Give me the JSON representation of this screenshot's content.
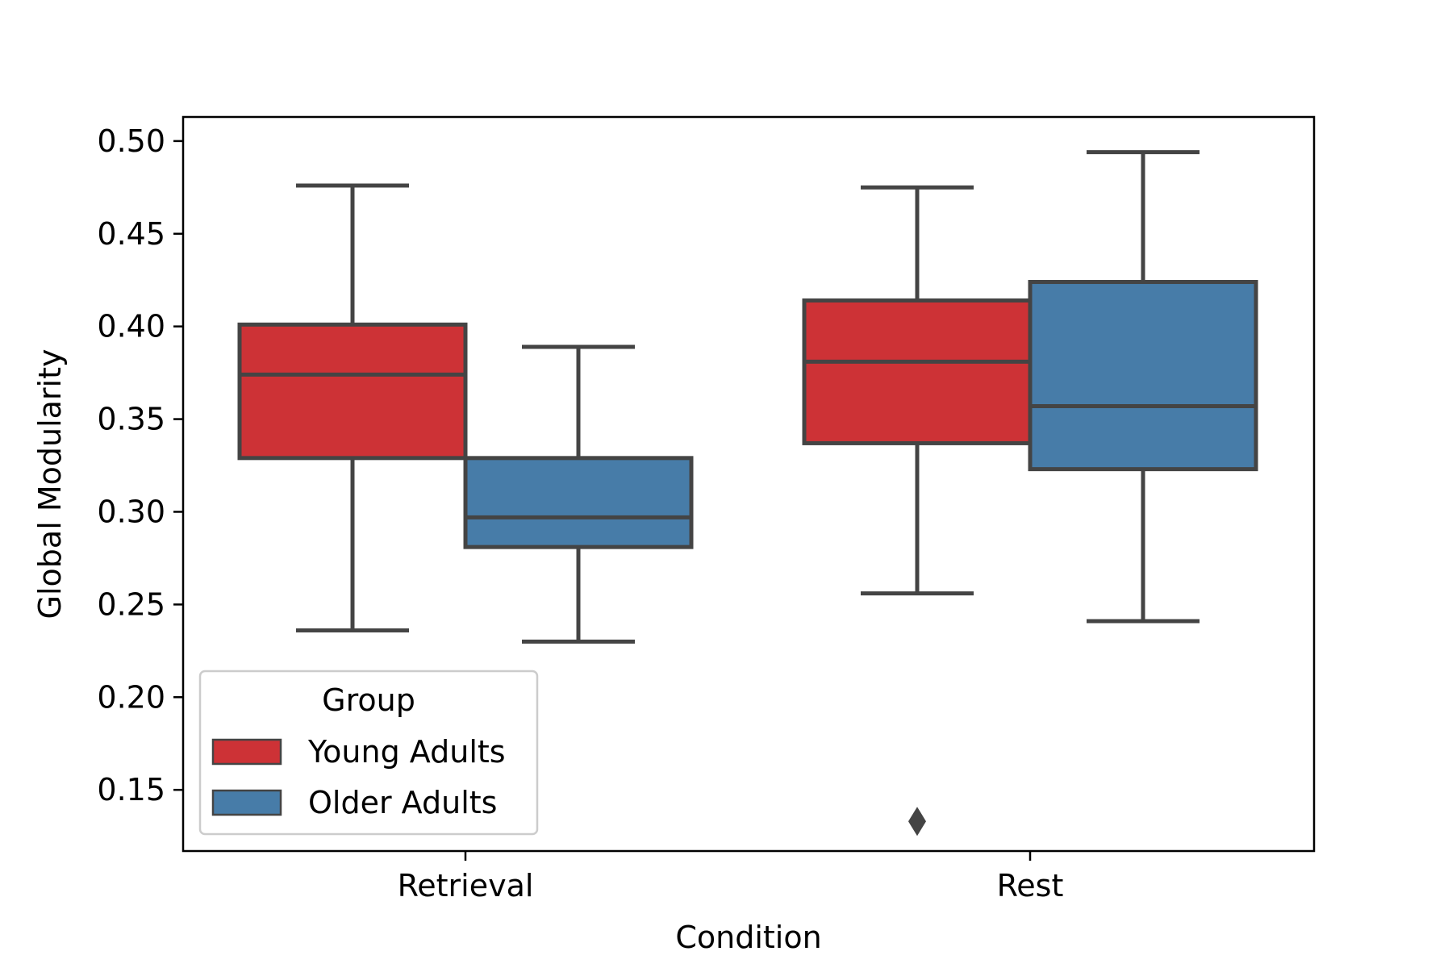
{
  "chart_data": {
    "type": "box",
    "xlabel": "Condition",
    "ylabel": "Global Modularity",
    "ylim": [
      0.117,
      0.513
    ],
    "yticks": [
      "0.15",
      "0.20",
      "0.25",
      "0.30",
      "0.35",
      "0.40",
      "0.45",
      "0.50"
    ],
    "categories": [
      "Retrieval",
      "Rest"
    ],
    "legend": {
      "title": "Group",
      "position": "lower-left"
    },
    "grid": false,
    "series": [
      {
        "name": "Young Adults",
        "color": "#cd3236",
        "boxes": [
          {
            "category": "Retrieval",
            "whisker_low": 0.236,
            "q1": 0.329,
            "median": 0.374,
            "q3": 0.401,
            "whisker_high": 0.476,
            "outliers": []
          },
          {
            "category": "Rest",
            "whisker_low": 0.256,
            "q1": 0.337,
            "median": 0.381,
            "q3": 0.414,
            "whisker_high": 0.475,
            "outliers": [
              0.133
            ]
          }
        ]
      },
      {
        "name": "Older Adults",
        "color": "#477ca8",
        "boxes": [
          {
            "category": "Retrieval",
            "whisker_low": 0.23,
            "q1": 0.281,
            "median": 0.297,
            "q3": 0.329,
            "whisker_high": 0.389,
            "outliers": []
          },
          {
            "category": "Rest",
            "whisker_low": 0.241,
            "q1": 0.323,
            "median": 0.357,
            "q3": 0.424,
            "whisker_high": 0.494,
            "outliers": []
          }
        ]
      }
    ],
    "line_color": "#444444"
  }
}
